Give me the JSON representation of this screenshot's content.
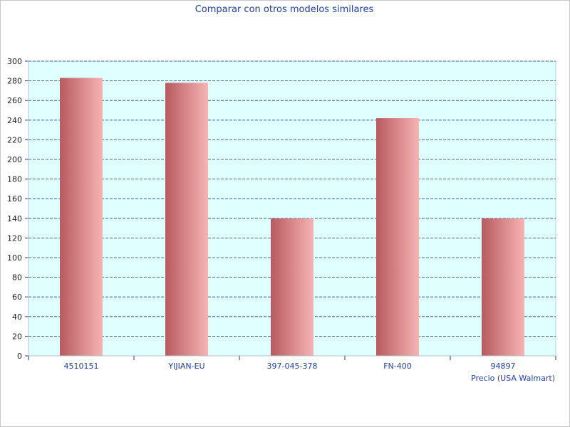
{
  "chart_data": {
    "type": "bar",
    "title": "Comparar con otros modelos similares",
    "xlabel": "Precio (USA Walmart)",
    "ylabel": "",
    "categories": [
      "4510151",
      "YIJIAN-EU",
      "397-045-378",
      "FN-400",
      "94897"
    ],
    "values": [
      283,
      278,
      140,
      242,
      140
    ],
    "ylim": [
      0,
      300
    ],
    "yticks": [
      0,
      20,
      40,
      60,
      80,
      100,
      120,
      140,
      160,
      180,
      200,
      220,
      240,
      260,
      280,
      300
    ],
    "grid": true,
    "legend": "none",
    "colors": {
      "plot_background": "#e0ffff",
      "grid": "#1a3a8c",
      "bar_dark": "#b75a5f",
      "bar_light": "#f7b4b4",
      "text_blue": "#1f3fa8"
    }
  }
}
